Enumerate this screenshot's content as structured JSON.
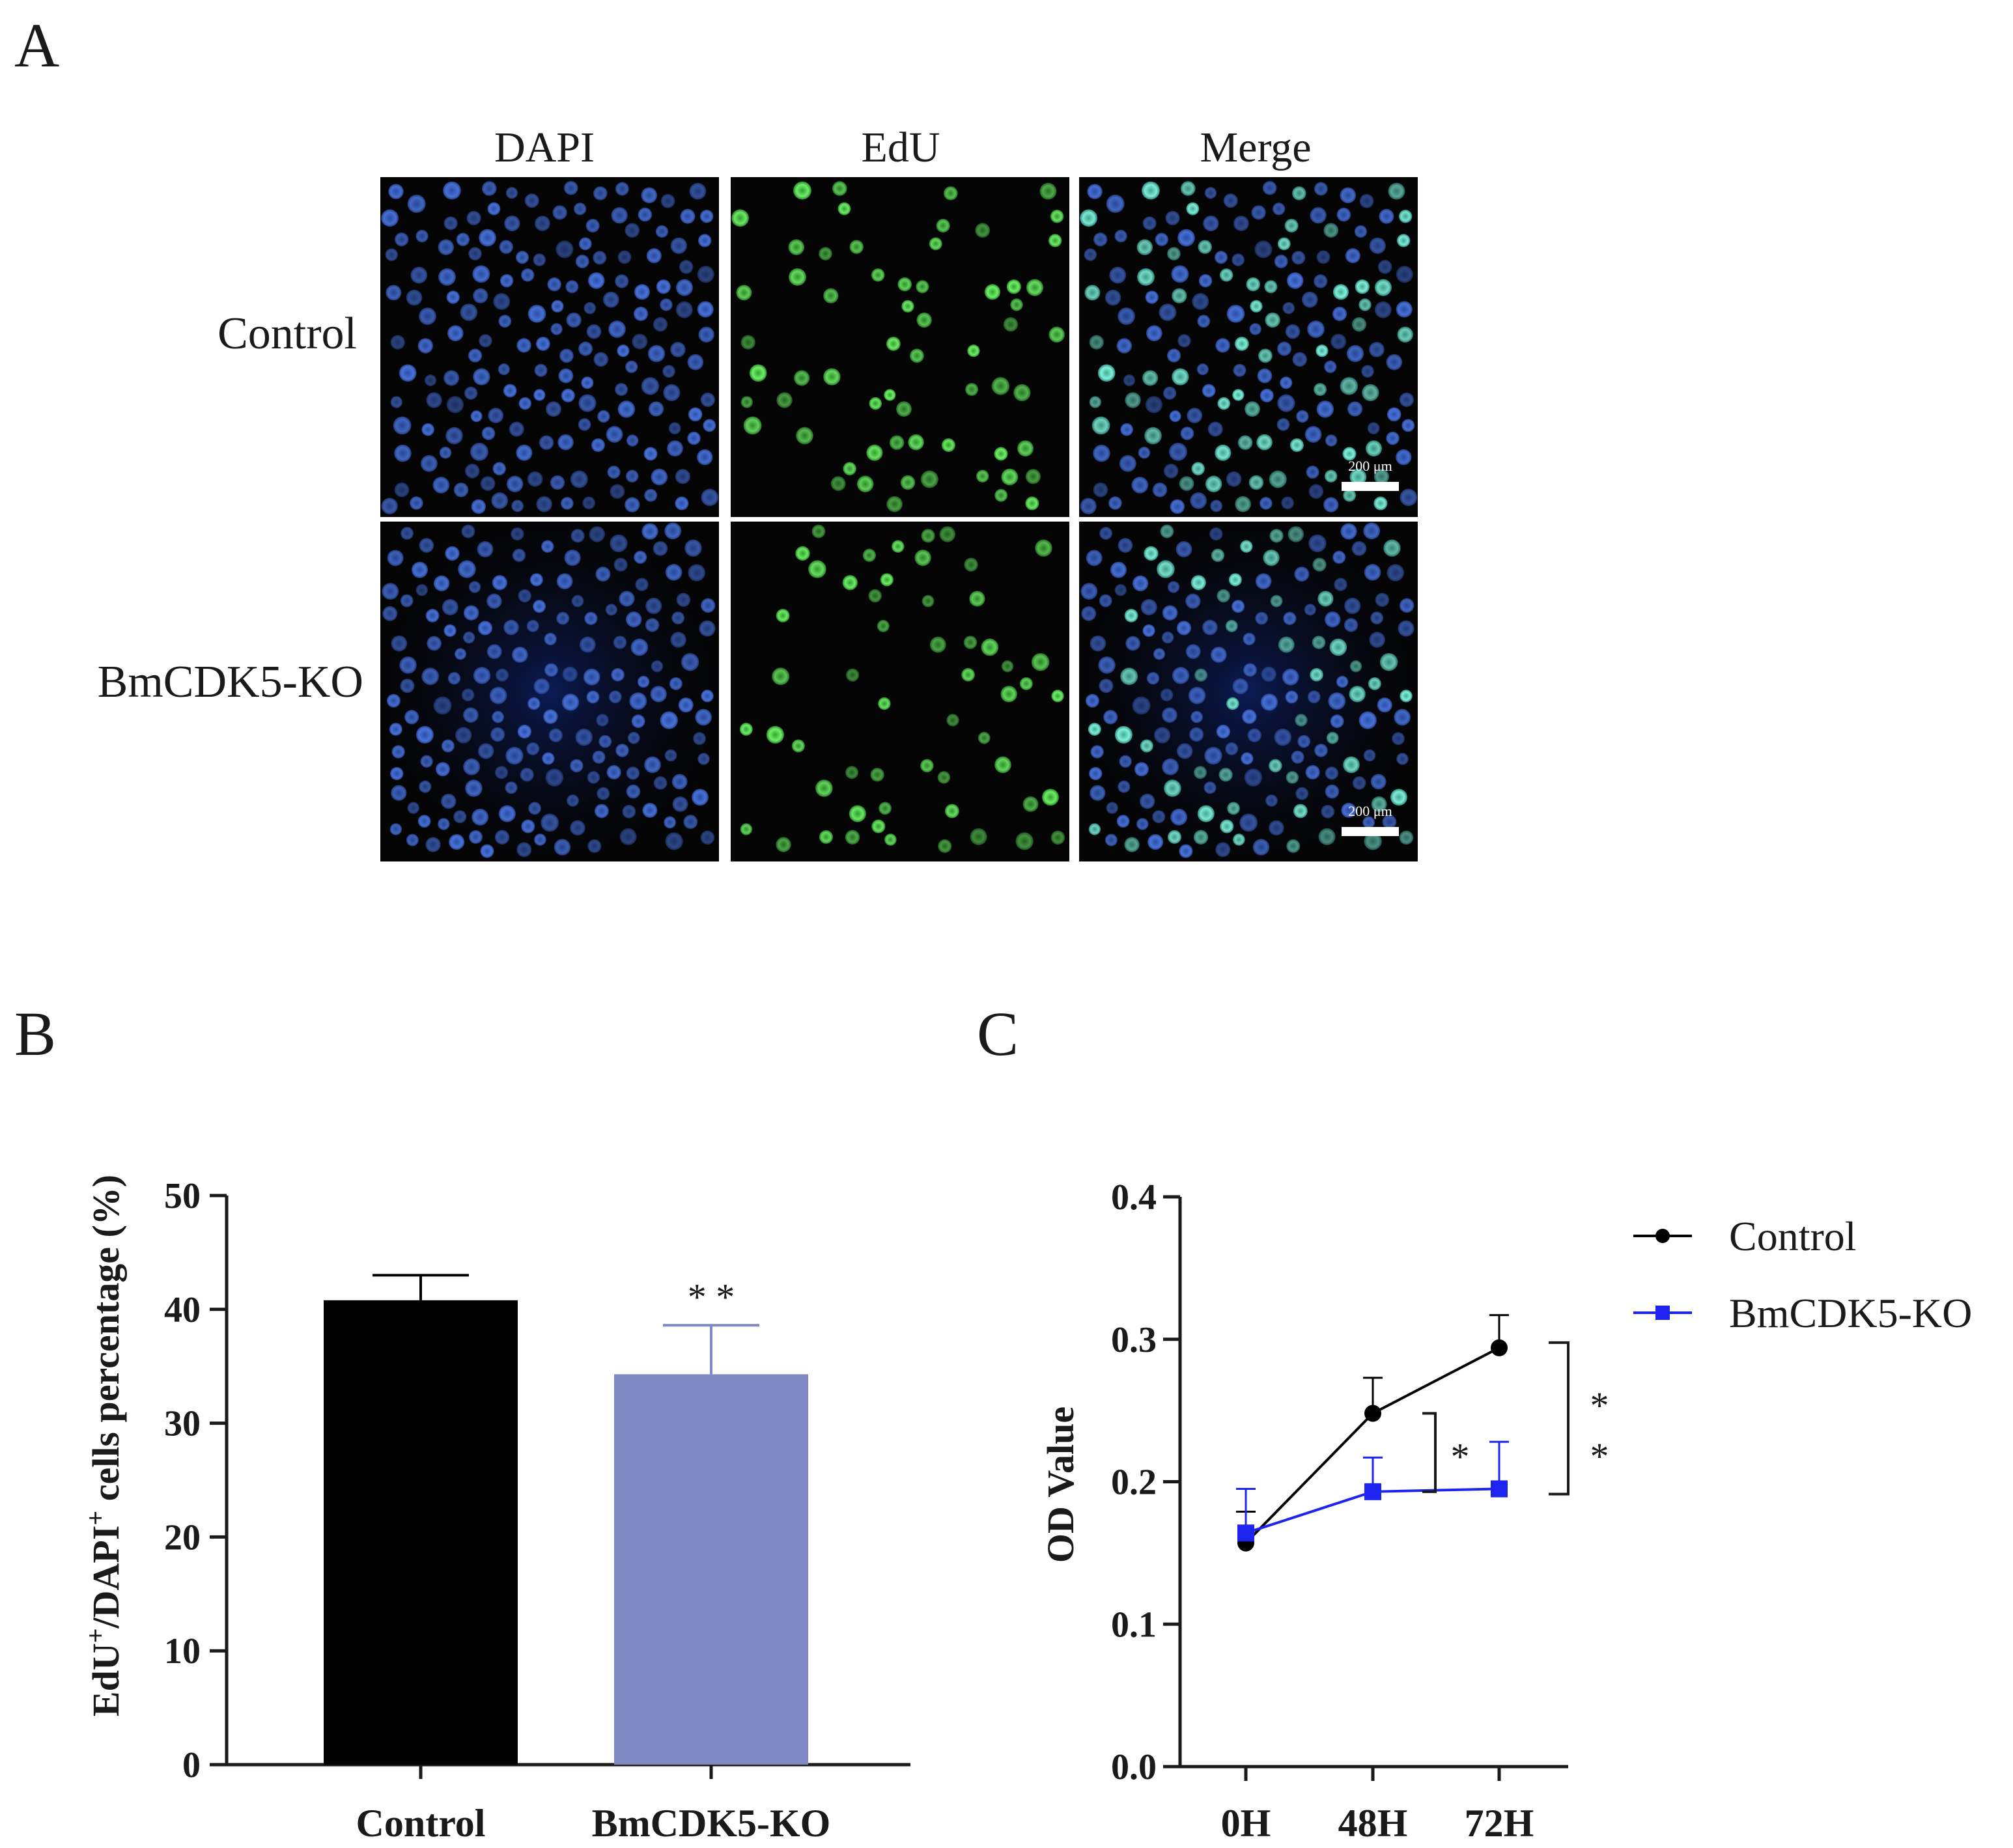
{
  "panel_letters": {
    "a": "A",
    "b": "B",
    "c": "C"
  },
  "panel_a": {
    "columns": [
      "DAPI",
      "EdU",
      "Merge"
    ],
    "rows": [
      "Control",
      "BmCDK5-KO"
    ],
    "scale_bar": "200 μm",
    "colors": {
      "dapi": "#3a63c8",
      "edu": "#4fe04a",
      "merge_edu": "#5fd9c6",
      "background": "#050506"
    }
  },
  "chart_data": [
    {
      "type": "bar",
      "title": "",
      "ylabel_parts": {
        "a": "EdU",
        "b": "+",
        "c": "/DAPI",
        "d": "+",
        "e": " cells percentage (%)"
      },
      "categories": [
        "Control",
        "BmCDK5-KO"
      ],
      "values": [
        40.8,
        34.3
      ],
      "errors": [
        2.2,
        4.3
      ],
      "ylim": [
        0,
        50
      ],
      "yticks": [
        0,
        10,
        20,
        30,
        40,
        50
      ],
      "colors": [
        "#000000",
        "#7f89c3"
      ],
      "annotations": [
        {
          "category": "BmCDK5-KO",
          "text": "* *"
        }
      ]
    },
    {
      "type": "line",
      "ylabel": "OD  Value",
      "x": [
        "0H",
        "48H",
        "72H"
      ],
      "ylim": [
        0.0,
        0.4
      ],
      "yticks": [
        "0.0",
        "0.1",
        "0.2",
        "0.3",
        "0.4"
      ],
      "series": [
        {
          "name": "Control",
          "values": [
            0.157,
            0.248,
            0.294
          ],
          "errors": [
            0.022,
            0.025,
            0.023
          ],
          "color": "#000000",
          "marker": "circle"
        },
        {
          "name": "BmCDK5-KO",
          "values": [
            0.164,
            0.193,
            0.195
          ],
          "errors": [
            0.031,
            0.024,
            0.033
          ],
          "color": "#1d24f0",
          "marker": "square"
        }
      ],
      "legend_position": "top-right",
      "annotations": [
        {
          "at": "48H",
          "text": "*"
        },
        {
          "at": "72H",
          "text": "* *"
        }
      ]
    }
  ]
}
